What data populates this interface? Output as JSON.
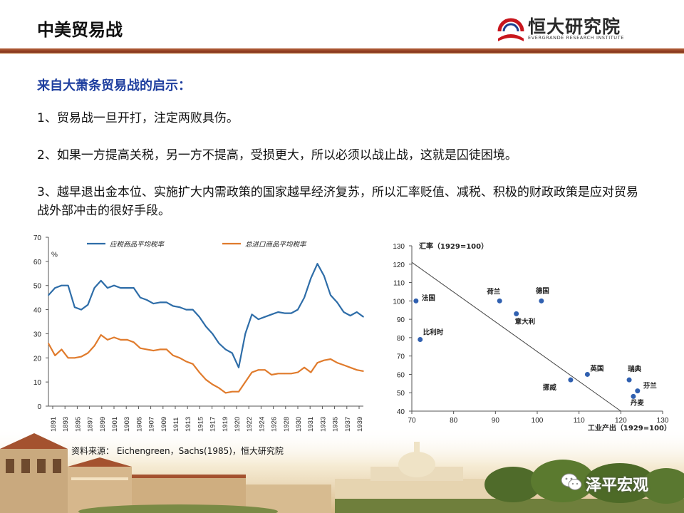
{
  "header": {
    "title": "中美贸易战"
  },
  "logo": {
    "cn": "恒大研究院",
    "en": "EVERGRANDE RESEARCH INSTITUTE"
  },
  "content": {
    "heading": "来自大萧条贸易战的启示：",
    "points": [
      "1、贸易战一旦开打，注定两败具伤。",
      "2、如果一方提高关税，另一方不提高，受损更大，所以必须以战止战，这就是囚徒困境。",
      "3、越早退出金本位、实施扩大内需政策的国家越早经济复苏，所以汇率贬值、减税、积极的财政政策是应对贸易战外部冲击的很好手段。"
    ]
  },
  "source": "资料来源： Eichengreen，Sachs(1985)，恒大研究院",
  "watermark": "泽平宏观",
  "colors": {
    "series1": "#2e6da8",
    "series2": "#e07b2c",
    "scatter": "#3060b0",
    "heading": "#1f3f9f",
    "bar": "#8b2f17"
  },
  "chart_data": [
    {
      "type": "line",
      "ylabel": "%",
      "ylim": [
        0,
        70
      ],
      "yticks": [
        0,
        10,
        20,
        30,
        40,
        50,
        60,
        70
      ],
      "xlim": [
        1891,
        1939
      ],
      "xticks": [
        "1891",
        "1893",
        "1895",
        "1897",
        "1899",
        "1901",
        "1903",
        "1905",
        "1907",
        "1909",
        "1911",
        "1913",
        "1915",
        "1917",
        "1919",
        "1920",
        "1922",
        "1924",
        "1926",
        "1928",
        "1930",
        "1931",
        "1933",
        "1935",
        "1937",
        "1939"
      ],
      "series": [
        {
          "name": "应税商品平均税率",
          "color": "#2e6da8",
          "x": [
            1891,
            1892,
            1893,
            1894,
            1895,
            1896,
            1897,
            1898,
            1899,
            1900,
            1901,
            1902,
            1903,
            1904,
            1905,
            1906,
            1907,
            1908,
            1909,
            1910,
            1911,
            1912,
            1913,
            1914,
            1915,
            1916,
            1917,
            1918,
            1919,
            1920,
            1921,
            1922,
            1923,
            1924,
            1925,
            1926,
            1927,
            1928,
            1929,
            1930,
            1931,
            1932,
            1933,
            1934,
            1935,
            1936,
            1937,
            1938,
            1939
          ],
          "values": [
            46,
            49,
            50,
            50,
            41,
            40,
            42,
            49,
            52,
            49,
            50,
            49,
            49,
            49,
            45,
            44,
            42.5,
            43,
            43,
            41.5,
            41,
            40,
            40,
            37,
            33,
            30,
            26,
            23.5,
            22,
            16,
            30,
            38,
            36,
            37,
            38,
            39,
            38.5,
            38.5,
            40,
            45,
            53,
            59,
            54,
            46,
            43,
            39,
            37.5,
            39,
            37
          ]
        },
        {
          "name": "总进口商品平均税率",
          "color": "#e07b2c",
          "x": [
            1891,
            1892,
            1893,
            1894,
            1895,
            1896,
            1897,
            1898,
            1899,
            1900,
            1901,
            1902,
            1903,
            1904,
            1905,
            1906,
            1907,
            1908,
            1909,
            1910,
            1911,
            1912,
            1913,
            1914,
            1915,
            1916,
            1917,
            1918,
            1919,
            1920,
            1921,
            1922,
            1923,
            1924,
            1925,
            1926,
            1927,
            1928,
            1929,
            1930,
            1931,
            1932,
            1933,
            1934,
            1935,
            1936,
            1937,
            1938,
            1939
          ],
          "values": [
            26,
            21,
            23.5,
            20,
            20,
            20.5,
            22,
            25,
            29.5,
            27.5,
            28.5,
            27.5,
            27.5,
            26.5,
            24,
            23.5,
            23,
            23.5,
            23.5,
            21,
            20,
            18.5,
            17.5,
            14,
            11,
            9,
            7.5,
            5.5,
            6,
            6,
            10,
            14,
            15,
            15,
            13,
            13.5,
            13.5,
            13.5,
            14,
            16,
            14,
            18,
            19,
            19.5,
            18,
            17,
            16,
            15,
            14.5
          ]
        }
      ]
    },
    {
      "type": "scatter",
      "ylabel": "汇率（1929=100）",
      "xlabel": "工业产出（1929=100）",
      "xlim": [
        70,
        130
      ],
      "ylim": [
        40,
        130
      ],
      "xticks": [
        70,
        80,
        90,
        100,
        110,
        120,
        130
      ],
      "yticks": [
        40,
        50,
        60,
        70,
        80,
        90,
        100,
        110,
        120,
        130
      ],
      "points": [
        {
          "label": "法国",
          "x": 71,
          "y": 100
        },
        {
          "label": "比利时",
          "x": 72,
          "y": 79
        },
        {
          "label": "荷兰",
          "x": 91,
          "y": 100
        },
        {
          "label": "意大利",
          "x": 95,
          "y": 93
        },
        {
          "label": "德国",
          "x": 101,
          "y": 100
        },
        {
          "label": "挪威",
          "x": 108,
          "y": 57
        },
        {
          "label": "英国",
          "x": 112,
          "y": 60
        },
        {
          "label": "瑞典",
          "x": 122,
          "y": 57
        },
        {
          "label": "芬兰",
          "x": 124,
          "y": 51
        },
        {
          "label": "丹麦",
          "x": 123,
          "y": 48
        }
      ],
      "trendline": [
        {
          "x": 70,
          "y": 121
        },
        {
          "x": 120,
          "y": 40
        }
      ]
    }
  ]
}
